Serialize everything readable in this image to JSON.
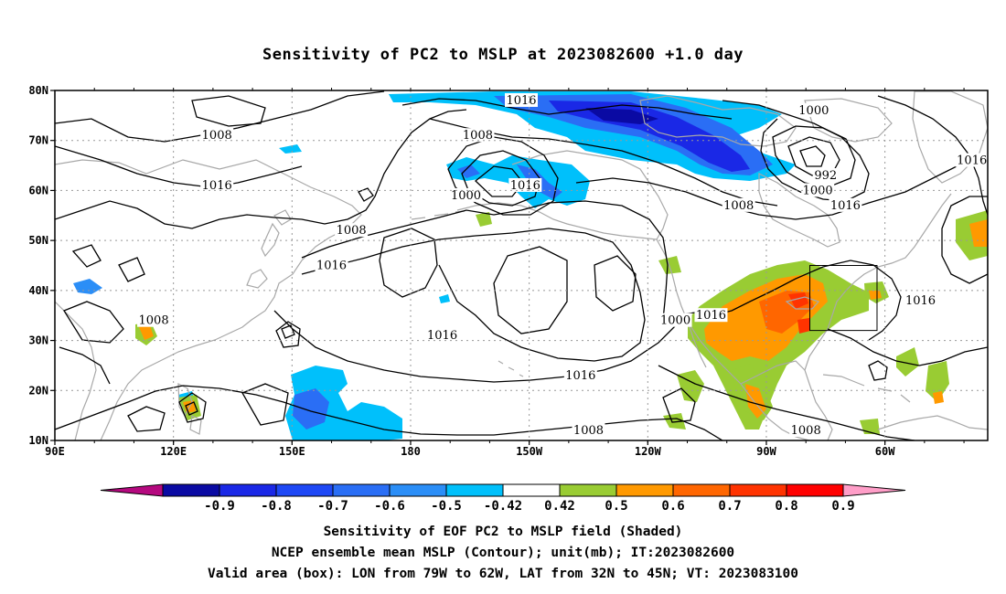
{
  "title": "Sensitivity of PC2 to MSLP at 2023082600 +1.0 day",
  "map": {
    "lat_labels": [
      "80N",
      "70N",
      "60N",
      "50N",
      "40N",
      "30N",
      "20N",
      "10N"
    ],
    "lon_labels": [
      "90E",
      "120E",
      "150E",
      "180",
      "150W",
      "120W",
      "90W",
      "60W"
    ],
    "lon_range": [
      90,
      326
    ],
    "lat_range": [
      10,
      80
    ],
    "grid": "dotted",
    "colors": {
      "coast": "#a8a8a8",
      "contour": "#000000",
      "grid": "#999999"
    }
  },
  "contour_labels": [
    {
      "text": "1008",
      "lon": 131,
      "lat": 71
    },
    {
      "text": "1016",
      "lon": 131,
      "lat": 61
    },
    {
      "text": "1008",
      "lon": 165,
      "lat": 52
    },
    {
      "text": "1016",
      "lon": 160,
      "lat": 45
    },
    {
      "text": "1008",
      "lon": 115,
      "lat": 34
    },
    {
      "text": "1000",
      "lon": 194,
      "lat": 59
    },
    {
      "text": "1008",
      "lon": 197,
      "lat": 71
    },
    {
      "text": "1016",
      "lon": 208,
      "lat": 78
    },
    {
      "text": "1016",
      "lon": 209,
      "lat": 61
    },
    {
      "text": "1016",
      "lon": 188,
      "lat": 31
    },
    {
      "text": "1016",
      "lon": 223,
      "lat": 23
    },
    {
      "text": "1008",
      "lon": 225,
      "lat": 12
    },
    {
      "text": "1000",
      "lon": 282,
      "lat": 76
    },
    {
      "text": "992",
      "lon": 285,
      "lat": 63
    },
    {
      "text": "1000",
      "lon": 283,
      "lat": 60
    },
    {
      "text": "1008",
      "lon": 263,
      "lat": 57
    },
    {
      "text": "1016",
      "lon": 290,
      "lat": 57
    },
    {
      "text": "1016",
      "lon": 322,
      "lat": 66
    },
    {
      "text": "1016",
      "lon": 309,
      "lat": 38
    },
    {
      "text": "1000",
      "lon": 247,
      "lat": 34
    },
    {
      "text": "1016",
      "lon": 256,
      "lat": 35
    },
    {
      "text": "1008",
      "lon": 280,
      "lat": 12
    }
  ],
  "valid_box": {
    "lon_min": 281,
    "lon_max": 298,
    "lat_min": 32,
    "lat_max": 45
  },
  "colorbar": {
    "colors": [
      "#b5097f",
      "#0a0aa3",
      "#1a28e6",
      "#1e48f5",
      "#2a6ef5",
      "#2b8ef7",
      "#00c0fb",
      "#ffffff",
      "#99cc33",
      "#ff9900",
      "#ff6600",
      "#ff3300",
      "#ff0000",
      "#ff9ec8"
    ],
    "ticks": [
      "-0.9",
      "-0.8",
      "-0.7",
      "-0.6",
      "-0.5",
      "-0.42",
      "0.42",
      "0.5",
      "0.6",
      "0.7",
      "0.8",
      "0.9"
    ]
  },
  "captions": [
    "Sensitivity of EOF PC2 to MSLP field (Shaded)",
    "NCEP ensemble mean MSLP (Contour); unit(mb); IT:2023082600",
    "Valid area (box): LON from 79W to 62W, LAT from 32N to 45N; VT: 2023083100"
  ]
}
